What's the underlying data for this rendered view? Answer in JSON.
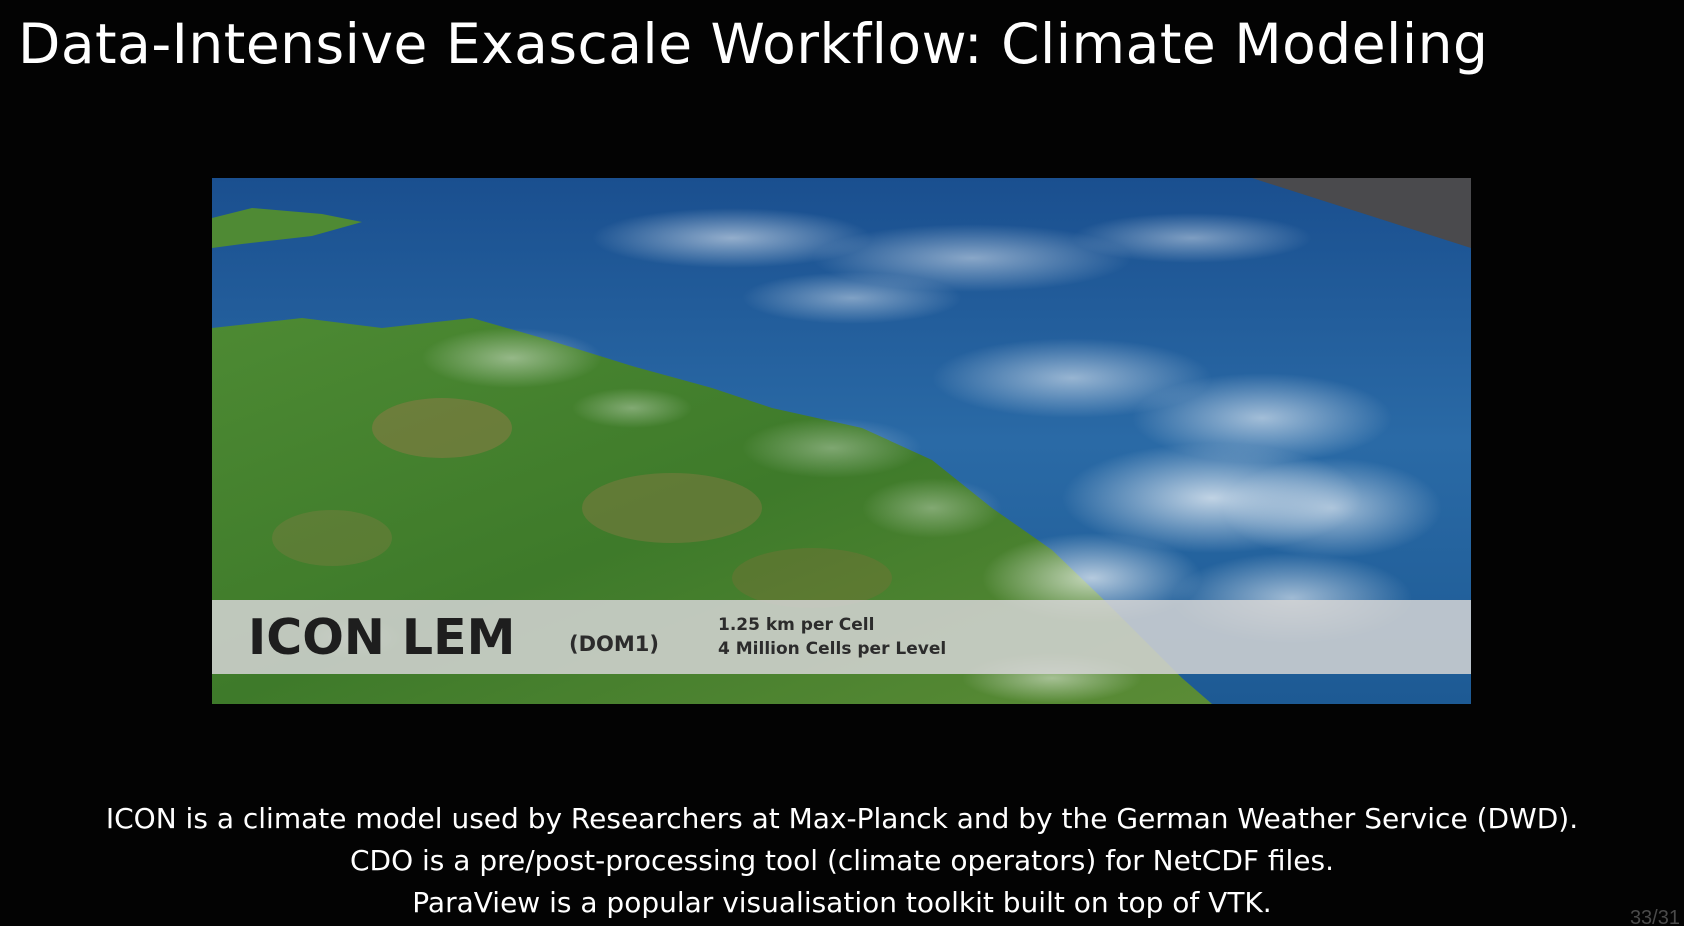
{
  "slide": {
    "title": "Data-Intensive Exascale Workflow: Climate Modeling",
    "media": {
      "icon": "satellite-globe-image",
      "overlay_title": "ICON LEM",
      "overlay_subtitle": "(DOM1)",
      "overlay_details": [
        "1.25 km per Cell",
        "4 Million Cells per Level"
      ]
    },
    "description": [
      "ICON is a climate model used by Researchers at Max-Planck and by the German Weather Service (DWD).",
      "CDO is a pre/post-processing tool (climate operators) for NetCDF files.",
      "ParaView is a popular visualisation toolkit built on top of VTK."
    ],
    "page_number": "33/31"
  },
  "colors": {
    "background": "#030303",
    "text": "#ffffff",
    "ocean": "#1c4f86",
    "land": "#3f7a2a",
    "caption_bar": "#d4d4d4"
  }
}
